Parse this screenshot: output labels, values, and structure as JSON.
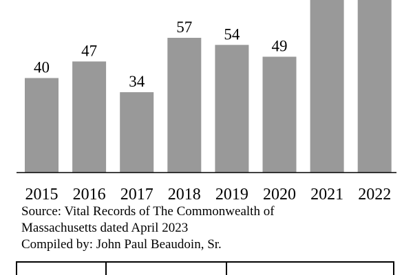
{
  "chart_data": {
    "type": "bar",
    "categories": [
      "2015",
      "2016",
      "2017",
      "2018",
      "2019",
      "2020",
      "2021",
      "2022"
    ],
    "values": [
      40,
      47,
      34,
      57,
      54,
      49,
      null,
      null
    ],
    "data_labels": [
      "40",
      "47",
      "34",
      "57",
      "54",
      "49",
      "",
      ""
    ],
    "title": "",
    "xlabel": "",
    "ylabel": "",
    "ylim": [
      0,
      65
    ],
    "grid": false,
    "bar_color": "#999999",
    "axis_color": "#000000",
    "note": ""
  },
  "source": {
    "line1": "Source:  Vital Records of The Commonwealth of",
    "line2": "Massachusetts dated April 2023",
    "line3": "Compiled by:  John Paul Beaudoin, Sr."
  }
}
